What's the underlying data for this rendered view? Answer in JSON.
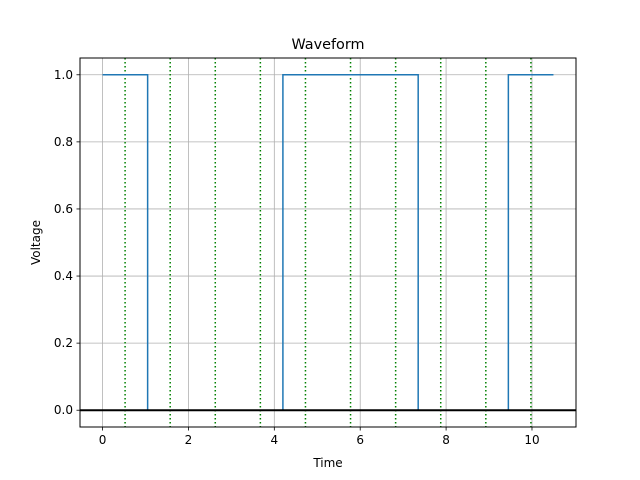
{
  "chart_data": {
    "type": "line",
    "title": "Waveform",
    "xlabel": "Time",
    "ylabel": "Voltage",
    "xlim": [
      -0.525,
      11.025
    ],
    "ylim": [
      -0.05,
      1.05
    ],
    "xticks": [
      0,
      2,
      4,
      6,
      8,
      10
    ],
    "yticks": [
      0.0,
      0.2,
      0.4,
      0.6,
      0.8,
      1.0
    ],
    "xtick_labels": [
      "0",
      "2",
      "4",
      "6",
      "8",
      "10"
    ],
    "ytick_labels": [
      "0.0",
      "0.2",
      "0.4",
      "0.6",
      "0.8",
      "1.0"
    ],
    "grid": true,
    "series": [
      {
        "style": "step",
        "color": "#1f77b4",
        "x": [
          0,
          1.05,
          1.05,
          4.2,
          4.2,
          7.35,
          7.35,
          9.45,
          9.45,
          10.5
        ],
        "y": [
          1,
          1,
          0,
          0,
          1,
          1,
          0,
          0,
          1,
          1
        ]
      }
    ],
    "horizontal_lines": [
      {
        "y": 0,
        "color": "#000000",
        "style": "solid"
      }
    ],
    "vertical_markers": {
      "color": "#008000",
      "style": "dotted",
      "x": [
        0.525,
        1.575,
        2.625,
        3.675,
        4.725,
        5.775,
        6.825,
        7.875,
        8.925,
        9.975
      ]
    }
  }
}
